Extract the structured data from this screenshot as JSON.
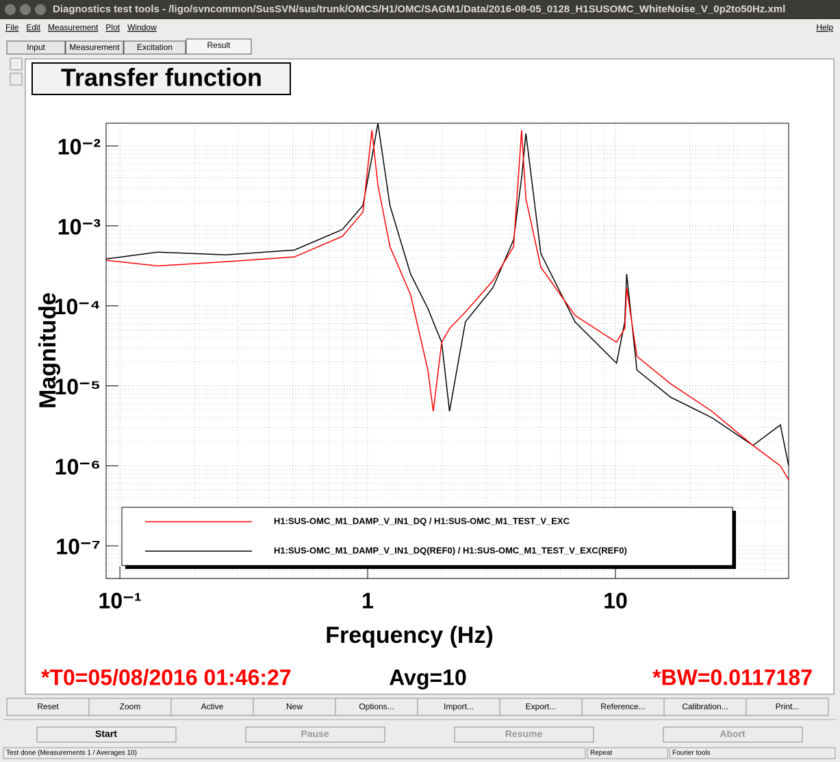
{
  "window": {
    "title": "Diagnostics test tools - /ligo/svncommon/SusSVN/sus/trunk/OMCS/H1/OMC/SAGM1/Data/2016-08-05_0128_H1SUSOMC_WhiteNoise_V_0p2to50Hz.xml"
  },
  "menu": [
    "File",
    "Edit",
    "Measurement",
    "Plot",
    "Window"
  ],
  "help": "Help",
  "tabs": [
    "Input",
    "Measurement",
    "Excitation",
    "Result"
  ],
  "chart_data": {
    "type": "line",
    "title": "Transfer function",
    "xlabel": "Frequency (Hz)",
    "ylabel": "Magnitude",
    "xscale": "log",
    "yscale": "log",
    "grid": true,
    "legend": "bottom",
    "x": [
      0.088,
      0.142,
      0.268,
      0.506,
      0.79,
      0.957,
      1.04,
      1.1,
      1.23,
      1.49,
      1.75,
      1.84,
      1.99,
      2.14,
      2.48,
      3.2,
      3.88,
      4.18,
      4.35,
      5.0,
      6.87,
      10.1,
      10.9,
      11.1,
      12.2,
      16.7,
      24.5,
      35.9,
      46.3,
      50.0
    ],
    "series": [
      {
        "name": "H1:SUS-OMC_M1_DAMP_V_IN1_DQ / H1:SUS-OMC_M1_TEST_V_EXC",
        "color": "#ff0000",
        "values": [
          0.000371,
          0.000316,
          0.000356,
          0.000409,
          0.00074,
          0.00148,
          0.0157,
          0.00325,
          0.00055,
          0.000138,
          1.58e-05,
          4.8e-06,
          3.5e-05,
          5.2e-05,
          8.4e-05,
          0.000205,
          0.00055,
          0.0157,
          0.00219,
          0.000304,
          7.6e-05,
          3.5e-05,
          5.2e-05,
          0.000168,
          2.34e-05,
          1.06e-05,
          4.8e-06,
          1.8e-06,
          1e-06,
          6.7e-07
        ]
      },
      {
        "name": "H1:SUS-OMC_M1_DAMP_V_IN1_DQ(REF0) / H1:SUS-OMC_M1_TEST_V_EXC(REF0)",
        "color": "#000000",
        "values": [
          0.000386,
          0.00047,
          0.000434,
          0.000499,
          0.0009,
          0.0018,
          0.00715,
          0.0192,
          0.0018,
          0.00025,
          9.3e-05,
          6.3e-05,
          3.5e-05,
          4.8e-06,
          6.3e-05,
          0.000168,
          0.00067,
          0.00396,
          0.0143,
          0.000452,
          6.3e-05,
          1.92e-05,
          6.3e-05,
          0.00025,
          1.58e-05,
          7.2e-06,
          4e-06,
          1.8e-06,
          3.25e-06,
          1e-06
        ]
      }
    ],
    "xlim": [
      0.088,
      50
    ],
    "ylim": [
      3.9e-08,
      0.0192
    ],
    "xticks": [
      {
        "value": 0.1,
        "label": "10⁻¹"
      },
      1,
      10
    ],
    "yticks": [
      {
        "value": 1e-07,
        "label": "10⁻⁷"
      },
      {
        "value": 1e-06,
        "label": "10⁻⁶"
      },
      {
        "value": 1e-05,
        "label": "10⁻⁵"
      },
      {
        "value": 0.0001,
        "label": "10⁻⁴"
      },
      {
        "value": 0.001,
        "label": "10⁻³"
      },
      {
        "value": 0.01,
        "label": "10⁻²"
      }
    ]
  },
  "info": {
    "t0": "*T0=05/08/2016 01:46:27",
    "avg": "Avg=10",
    "bw": "*BW=0.0117187"
  },
  "buttons": [
    "Reset",
    "Zoom",
    "Active",
    "New",
    "Options...",
    "Import...",
    "Export...",
    "Reference...",
    "Calibration...",
    "Print..."
  ],
  "controls": [
    "Start",
    "Pause",
    "Resume",
    "Abort"
  ],
  "status": [
    "Test done (Measurements 1 / Averages 10)",
    "Repeat",
    "Fourier tools"
  ]
}
